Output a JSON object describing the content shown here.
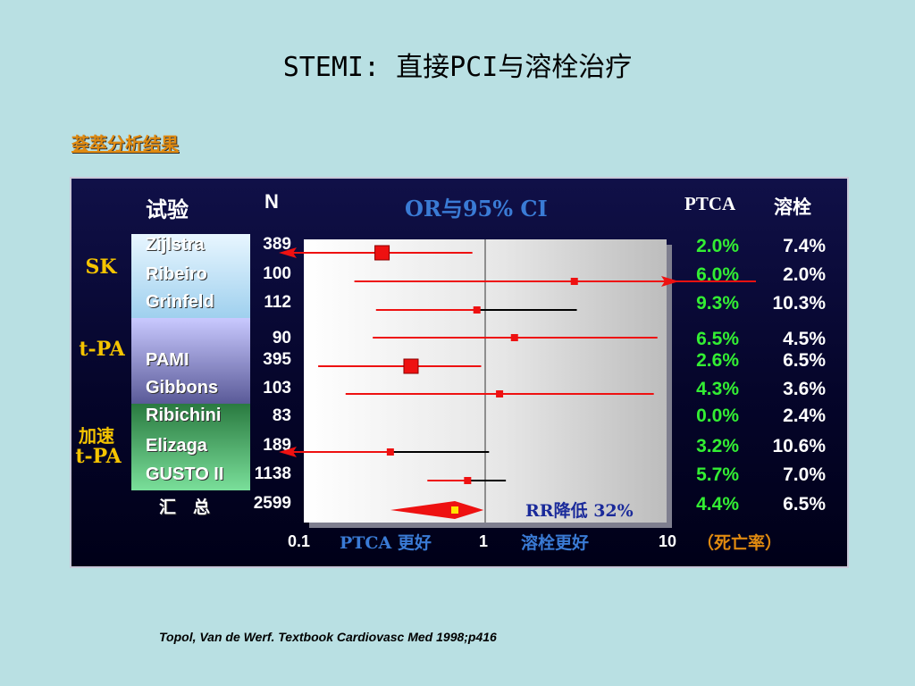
{
  "title": "STEMI: 直接PCI与溶栓治疗",
  "subtitle": "荟萃分析结果",
  "headers": {
    "trial": "试验",
    "n": "N",
    "ci": "OR与95% CI",
    "ptca": "PTCA",
    "lysis": "溶栓"
  },
  "groups": [
    {
      "label": "SK"
    },
    {
      "label": "t-PA"
    },
    {
      "label_line1": "加速",
      "label_line2": "t-PA"
    }
  ],
  "summary_label": "汇　总",
  "rr_label": "RR降低 32%",
  "axis": {
    "ticks": [
      "0.1",
      "1",
      "10"
    ],
    "left_label": "PTCA 更好",
    "right_label": "溶栓更好",
    "mortality_label": "（死亡率）"
  },
  "citation": "Topol, Van de Werf.  Textbook Cardiovasc Med 1998;p416",
  "colors": {
    "accent_red": "#ee1111",
    "ptca_green": "#33ee33",
    "group_yellow": "#f5c400",
    "header_blue": "#3a7bd5"
  },
  "chart_data": {
    "type": "forest",
    "xscale": "log",
    "xlim": [
      0.1,
      10
    ],
    "reference_line": 1,
    "rows": [
      {
        "trial": "Zijlstra",
        "n": "389",
        "ptca": "2.0%",
        "lysis": "7.4%",
        "or": 0.27,
        "lo": 0.1,
        "hi": 0.85,
        "lo_arrow": true,
        "hi_arrow": false,
        "size": "large"
      },
      {
        "trial": "Ribeiro",
        "n": "100",
        "ptca": "6.0%",
        "lysis": "2.0%",
        "or": 3.1,
        "lo": 0.19,
        "hi": 10,
        "lo_arrow": false,
        "hi_arrow": true,
        "size": "small"
      },
      {
        "trial": "Grinfeld",
        "n": "112",
        "ptca": "9.3%",
        "lysis": "10.3%",
        "or": 0.9,
        "lo": 0.25,
        "hi": 3.2,
        "lo_arrow": false,
        "hi_arrow": false,
        "size": "small"
      },
      {
        "trial": "",
        "n": "90",
        "ptca": "6.5%",
        "lysis": "4.5%",
        "or": 1.45,
        "lo": 0.24,
        "hi": 8.9,
        "lo_arrow": false,
        "hi_arrow": false,
        "size": "small"
      },
      {
        "trial": "PAMI",
        "n": "395",
        "ptca": "2.6%",
        "lysis": "6.5%",
        "or": 0.39,
        "lo": 0.12,
        "hi": 0.95,
        "lo_arrow": false,
        "hi_arrow": false,
        "size": "large"
      },
      {
        "trial": "Gibbons",
        "n": "103",
        "ptca": "4.3%",
        "lysis": "3.6%",
        "or": 1.2,
        "lo": 0.17,
        "hi": 8.5,
        "lo_arrow": false,
        "hi_arrow": false,
        "size": "small"
      },
      {
        "trial": "Ribichini",
        "n": "83",
        "ptca": "0.0%",
        "lysis": "2.4%",
        "or": null,
        "lo": null,
        "hi": null,
        "lo_arrow": false,
        "hi_arrow": false,
        "size": "none"
      },
      {
        "trial": "Elizaga",
        "n": "189",
        "ptca": "3.2%",
        "lysis": "10.6%",
        "or": 0.3,
        "lo": 0.1,
        "hi": 1.05,
        "lo_arrow": true,
        "hi_arrow": false,
        "size": "small"
      },
      {
        "trial": "GUSTO II",
        "n": "1138",
        "ptca": "5.7%",
        "lysis": "7.0%",
        "or": 0.8,
        "lo": 0.48,
        "hi": 1.3,
        "lo_arrow": false,
        "hi_arrow": false,
        "size": "small"
      },
      {
        "trial": "",
        "n": "2599",
        "ptca": "4.4%",
        "lysis": "6.5%",
        "or": 0.68,
        "lo": 0.3,
        "hi": 0.98,
        "lo_arrow": false,
        "hi_arrow": false,
        "size": "diamond"
      }
    ]
  }
}
